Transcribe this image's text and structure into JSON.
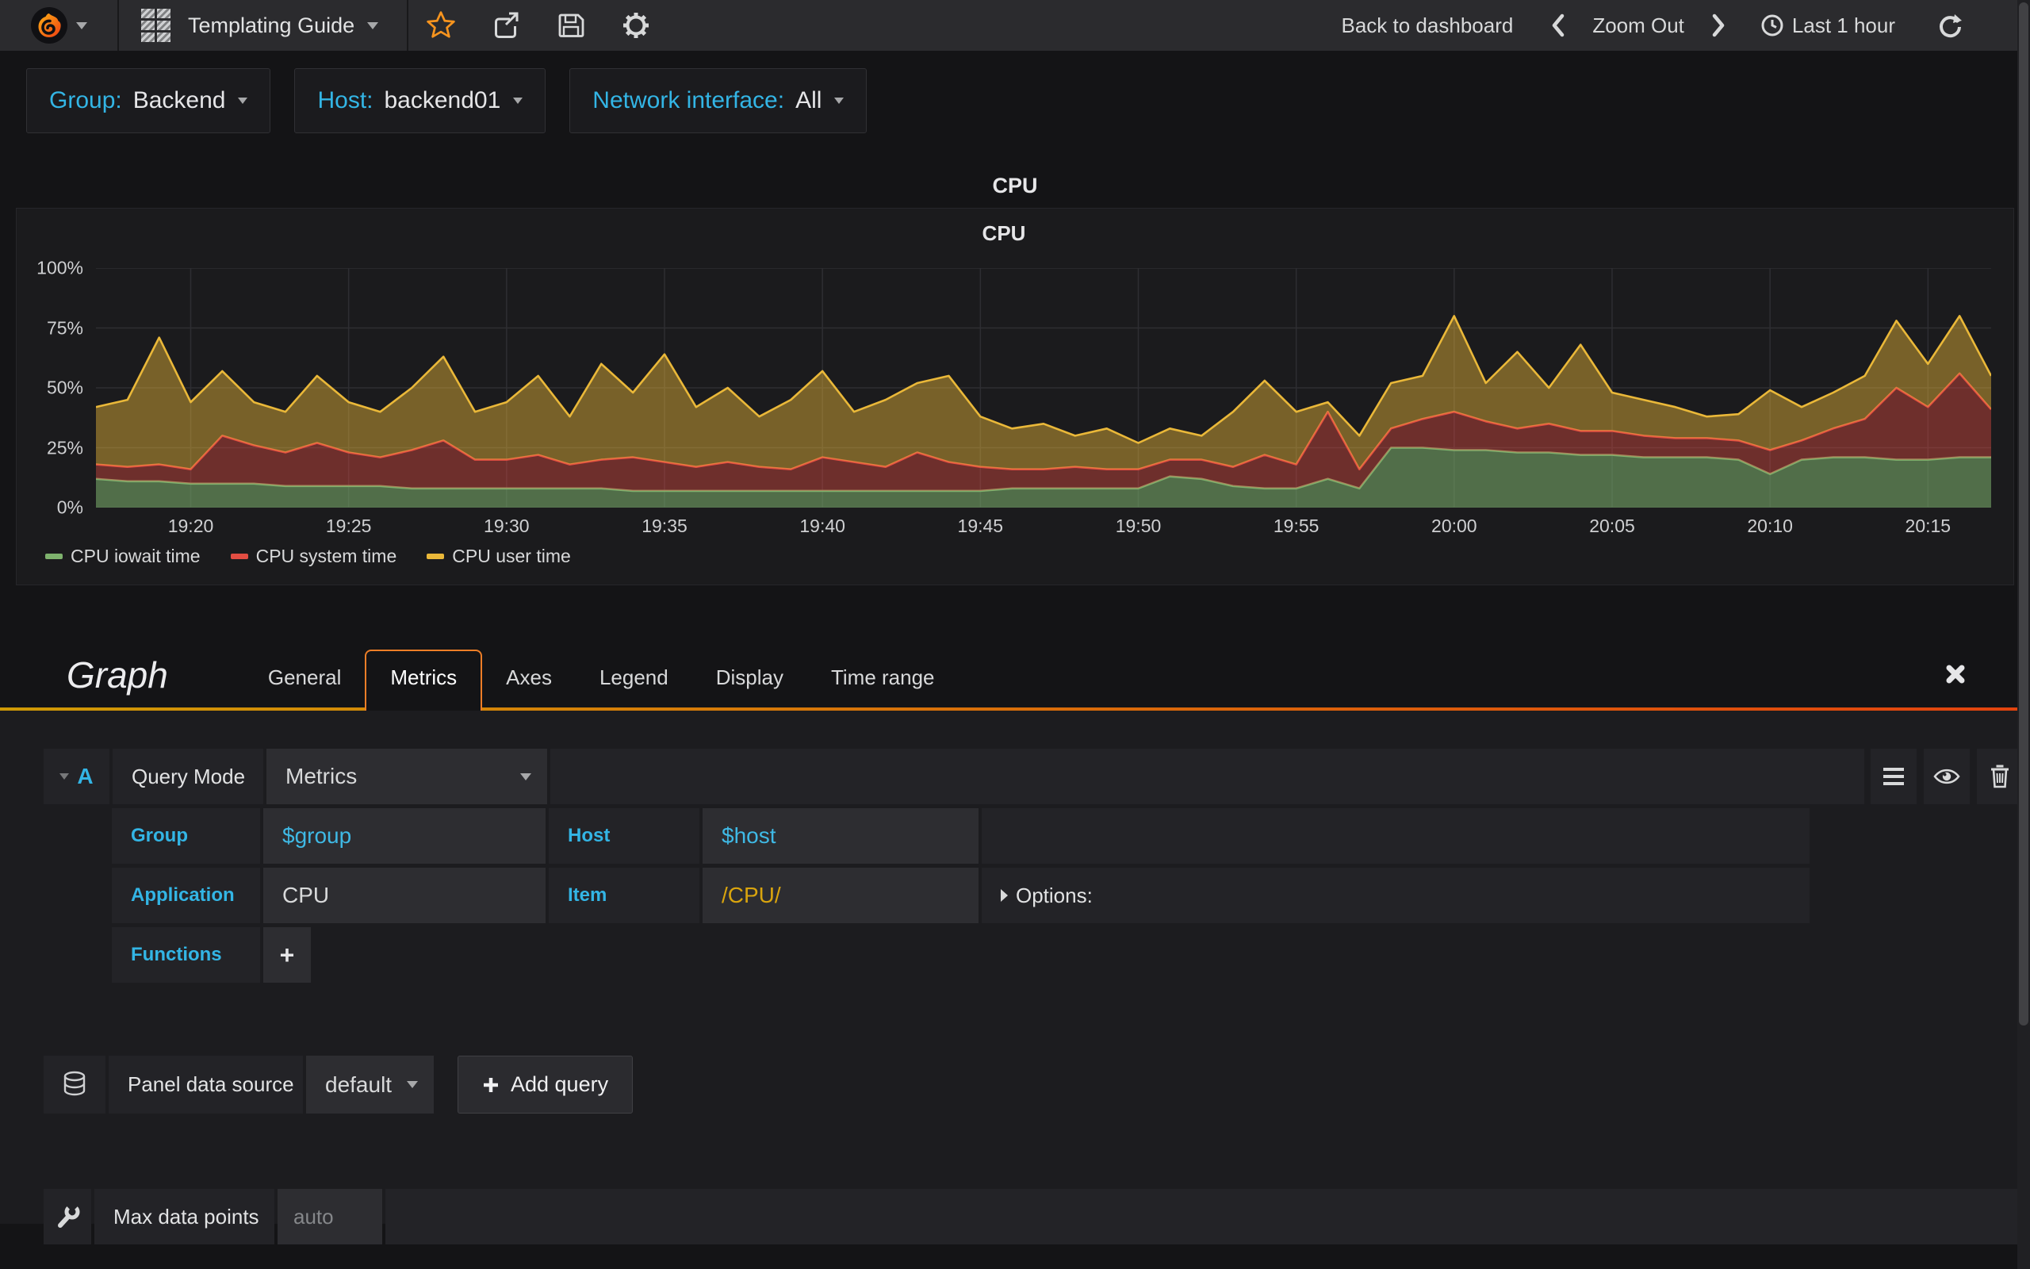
{
  "navbar": {
    "dashboard_title": "Templating Guide",
    "back_to_dashboard": "Back to dashboard",
    "zoom_out": "Zoom Out",
    "time_range": "Last 1 hour"
  },
  "variables": [
    {
      "label": "Group:",
      "value": "Backend"
    },
    {
      "label": "Host:",
      "value": "backend01"
    },
    {
      "label": "Network interface:",
      "value": "All"
    }
  ],
  "panel": {
    "title": "CPU"
  },
  "chart_data": {
    "type": "area",
    "title": "CPU",
    "stacked": true,
    "ylim": [
      0,
      100
    ],
    "y_ticks": [
      "0%",
      "25%",
      "50%",
      "75%",
      "100%"
    ],
    "time_start": "19:17",
    "time_end": "20:17",
    "x_ticks": [
      "19:20",
      "19:25",
      "19:30",
      "19:35",
      "19:40",
      "19:45",
      "19:50",
      "19:55",
      "20:00",
      "20:05",
      "20:10",
      "20:15"
    ],
    "legend_position": "bottom-left",
    "grid": true,
    "series": [
      {
        "name": "CPU iowait time",
        "color": "#7EB26D",
        "fill_opacity": 0.55,
        "values": [
          12,
          11,
          11,
          10,
          10,
          10,
          9,
          9,
          9,
          9,
          8,
          8,
          8,
          8,
          8,
          8,
          8,
          7,
          7,
          7,
          7,
          7,
          7,
          7,
          7,
          7,
          7,
          7,
          7,
          8,
          8,
          8,
          8,
          8,
          13,
          12,
          9,
          8,
          8,
          12,
          8,
          25,
          25,
          24,
          24,
          23,
          23,
          22,
          22,
          21,
          21,
          21,
          20,
          14,
          20,
          21,
          21,
          20,
          20,
          21,
          21
        ]
      },
      {
        "name": "CPU system time",
        "color": "#E24D42",
        "fill_opacity": 0.42,
        "values": [
          6,
          6,
          7,
          6,
          20,
          16,
          14,
          18,
          14,
          12,
          16,
          20,
          12,
          12,
          14,
          10,
          12,
          14,
          12,
          10,
          12,
          10,
          9,
          14,
          12,
          10,
          16,
          12,
          10,
          8,
          8,
          9,
          8,
          8,
          7,
          8,
          8,
          14,
          10,
          28,
          8,
          8,
          12,
          16,
          12,
          10,
          12,
          10,
          10,
          9,
          8,
          8,
          8,
          10,
          8,
          12,
          16,
          30,
          22,
          35,
          20
        ]
      },
      {
        "name": "CPU user time",
        "color": "#EAB839",
        "fill_opacity": 0.45,
        "values": [
          24,
          28,
          53,
          28,
          27,
          18,
          17,
          28,
          21,
          19,
          26,
          35,
          20,
          24,
          33,
          20,
          40,
          27,
          45,
          25,
          31,
          21,
          29,
          36,
          21,
          28,
          29,
          36,
          21,
          17,
          19,
          13,
          17,
          11,
          13,
          10,
          23,
          31,
          22,
          4,
          14,
          19,
          18,
          40,
          16,
          32,
          15,
          36,
          16,
          15,
          13,
          9,
          11,
          25,
          14,
          15,
          18,
          28,
          18,
          24,
          14
        ]
      }
    ]
  },
  "editor": {
    "panel_type": "Graph",
    "tabs": [
      "General",
      "Metrics",
      "Axes",
      "Legend",
      "Display",
      "Time range"
    ],
    "active_tab": "Metrics",
    "query": {
      "ref_id": "A",
      "mode_label": "Query Mode",
      "mode_value": "Metrics",
      "group_label": "Group",
      "group_value": "$group",
      "host_label": "Host",
      "host_value": "$host",
      "application_label": "Application",
      "application_value": "CPU",
      "item_label": "Item",
      "item_value": "/CPU/",
      "options_label": "Options:",
      "functions_label": "Functions",
      "add_function_label": "+"
    },
    "datasource": {
      "label": "Panel data source",
      "value": "default",
      "add_query_label": "Add query"
    },
    "max_data_points": {
      "label": "Max data points",
      "placeholder": "auto"
    }
  },
  "icons": [
    "grafana-logo",
    "dashboard-grid-icon",
    "star-icon",
    "share-icon",
    "save-icon",
    "gear-icon",
    "chevron-left-icon",
    "chevron-right-icon",
    "clock-icon",
    "refresh-icon",
    "collapse-caret-icon",
    "menu-icon",
    "eye-icon",
    "trash-icon",
    "database-icon",
    "plus-icon",
    "wrench-icon",
    "close-icon"
  ],
  "colors": {
    "accent_blue": "#33b5e5",
    "variable_gold": "#d9a40e",
    "star_orange": "#f7941e",
    "edit_gradient_start": "#cf9a06",
    "edit_gradient_end": "#e2440e",
    "navbar_bg": "#2b2b2e",
    "page_bg": "#141416"
  }
}
